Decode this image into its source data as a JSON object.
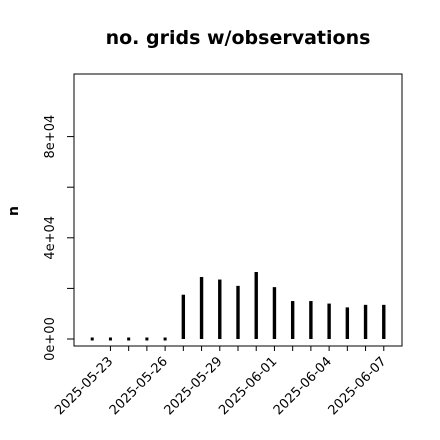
{
  "chart_data": {
    "type": "bar",
    "title": "no. grids w/observations",
    "xlabel": "",
    "ylabel": "n",
    "ylim": [
      0,
      100000
    ],
    "y_ticks": [
      0,
      20000,
      40000,
      60000,
      80000
    ],
    "y_tick_labels": [
      "0e+00",
      "",
      "4e+04",
      "",
      "8e+04"
    ],
    "x_range": [
      "2025-05-21",
      "2025-06-08"
    ],
    "x_ticks": [
      "2025-05-23",
      "2025-05-24",
      "2025-05-25",
      "2025-05-26",
      "2025-05-27",
      "2025-05-28",
      "2025-05-29",
      "2025-05-30",
      "2025-05-31",
      "2025-06-01",
      "2025-06-02",
      "2025-06-03",
      "2025-06-04",
      "2025-06-05",
      "2025-06-06",
      "2025-06-07"
    ],
    "x_tick_labels": [
      {
        "date": "2025-05-23",
        "text": "2025-05-23",
        "color": "#000000"
      },
      {
        "date": "2025-05-26",
        "text": "2025-05-26",
        "color": "#000000"
      },
      {
        "date": "2025-05-29",
        "text": "2025-05-29",
        "color": "#228b22"
      },
      {
        "date": "2025-06-01",
        "text": "2025-06-01",
        "color": "#000000"
      },
      {
        "date": "2025-06-04",
        "text": "2025-06-04",
        "color": "#000000"
      },
      {
        "date": "2025-06-07",
        "text": "2025-06-07",
        "color": "#000000"
      }
    ],
    "series": [
      {
        "dates": [
          "2025-05-22",
          "2025-05-23",
          "2025-05-24",
          "2025-05-25",
          "2025-05-26",
          "2025-05-27",
          "2025-05-28",
          "2025-05-29",
          "2025-05-30",
          "2025-05-31",
          "2025-06-01",
          "2025-06-02",
          "2025-06-03",
          "2025-06-04",
          "2025-06-05",
          "2025-06-06",
          "2025-06-07"
        ],
        "values": [
          0,
          0,
          0,
          0,
          0,
          17500,
          24500,
          23500,
          21000,
          26500,
          20500,
          15000,
          15000,
          14000,
          12500,
          13500,
          13500
        ]
      }
    ],
    "bar_color": "#000000",
    "grid": false,
    "legend": "none"
  }
}
